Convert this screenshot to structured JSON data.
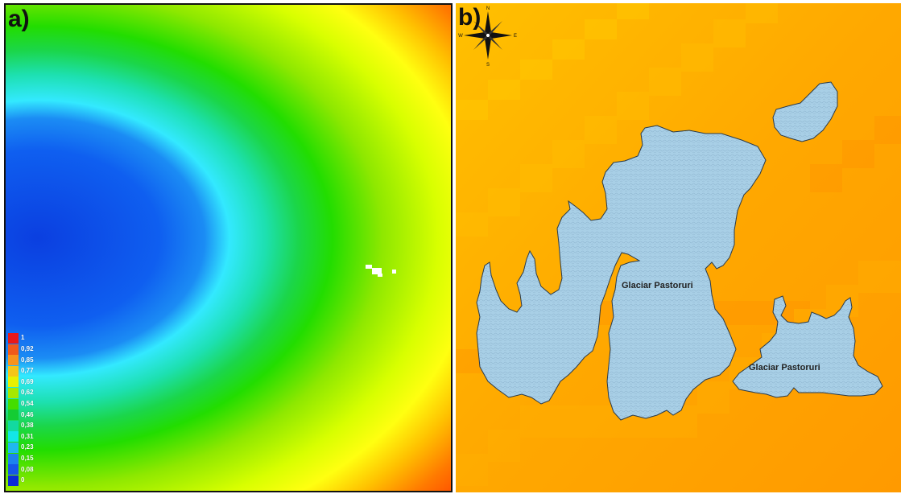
{
  "panels": {
    "a": {
      "label": "a)",
      "legend": [
        "1",
        "0,92",
        "0,85",
        "0,77",
        "0,69",
        "0,62",
        "0,54",
        "0,46",
        "0,38",
        "0,31",
        "0,23",
        "0,15",
        "0,08",
        "0"
      ],
      "legend_colors": [
        "#e8181a",
        "#f05a1c",
        "#f7931e",
        "#f5c518",
        "#e8f000",
        "#a6e800",
        "#44dd00",
        "#14cc33",
        "#13d9a0",
        "#13e6e6",
        "#20b8f0",
        "#1c82ee",
        "#1656e8",
        "#0a2ad8"
      ]
    },
    "b": {
      "label": "b)",
      "compass": {
        "n": "N",
        "s": "S",
        "e": "E",
        "w": "W"
      },
      "glacier_labels": [
        "Glaciar Pastoruri",
        "Glaciar Pastoruri"
      ],
      "colors": {
        "background_light": "#ffb000",
        "background_dark": "#ff9900",
        "glacier": "#a6cee3",
        "outline": "#2a3a4a"
      }
    }
  }
}
